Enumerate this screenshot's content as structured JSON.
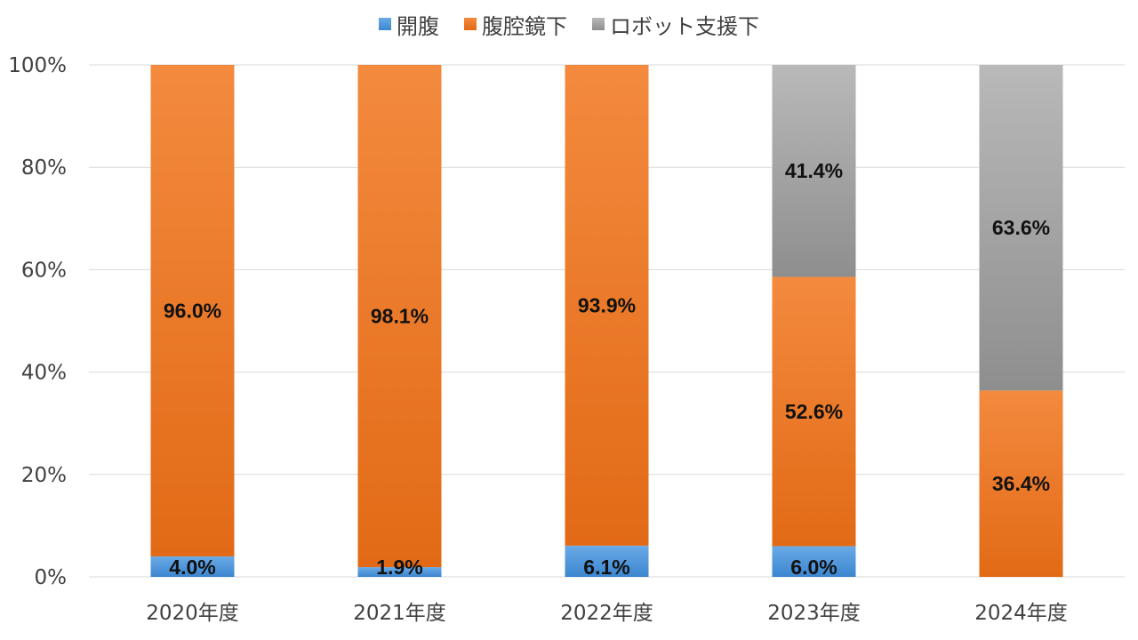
{
  "chart_data": {
    "type": "bar",
    "stacked": true,
    "categories": [
      "2020年度",
      "2021年度",
      "2022年度",
      "2023年度",
      "2024年度"
    ],
    "series": [
      {
        "name": "開腹",
        "values": [
          4.0,
          1.9,
          6.1,
          6.0,
          0
        ],
        "labels": [
          "4.0%",
          "1.9%",
          "6.1%",
          "6.0%",
          ""
        ]
      },
      {
        "name": "腹腔鏡下",
        "values": [
          96.0,
          98.1,
          93.9,
          52.6,
          36.4
        ],
        "labels": [
          "96.0%",
          "98.1%",
          "93.9%",
          "52.6%",
          "36.4%"
        ]
      },
      {
        "name": "ロボット支援下",
        "values": [
          0,
          0,
          0,
          41.4,
          63.6
        ],
        "labels": [
          "",
          "",
          "",
          "41.4%",
          "63.6%"
        ]
      }
    ],
    "ylim": [
      0,
      100
    ],
    "yticks": [
      "0%",
      "20%",
      "40%",
      "60%",
      "80%",
      "100%"
    ],
    "grid": true,
    "legend_position": "top"
  },
  "colors": {
    "blue_top": "#6aaae6",
    "blue_bottom": "#3c86d0",
    "orange_top": "#f38a3e",
    "orange_bottom": "#e26a16",
    "gray_top": "#b9b9b9",
    "gray_bottom": "#8e8e8e",
    "grid": "#d9d9d9"
  }
}
